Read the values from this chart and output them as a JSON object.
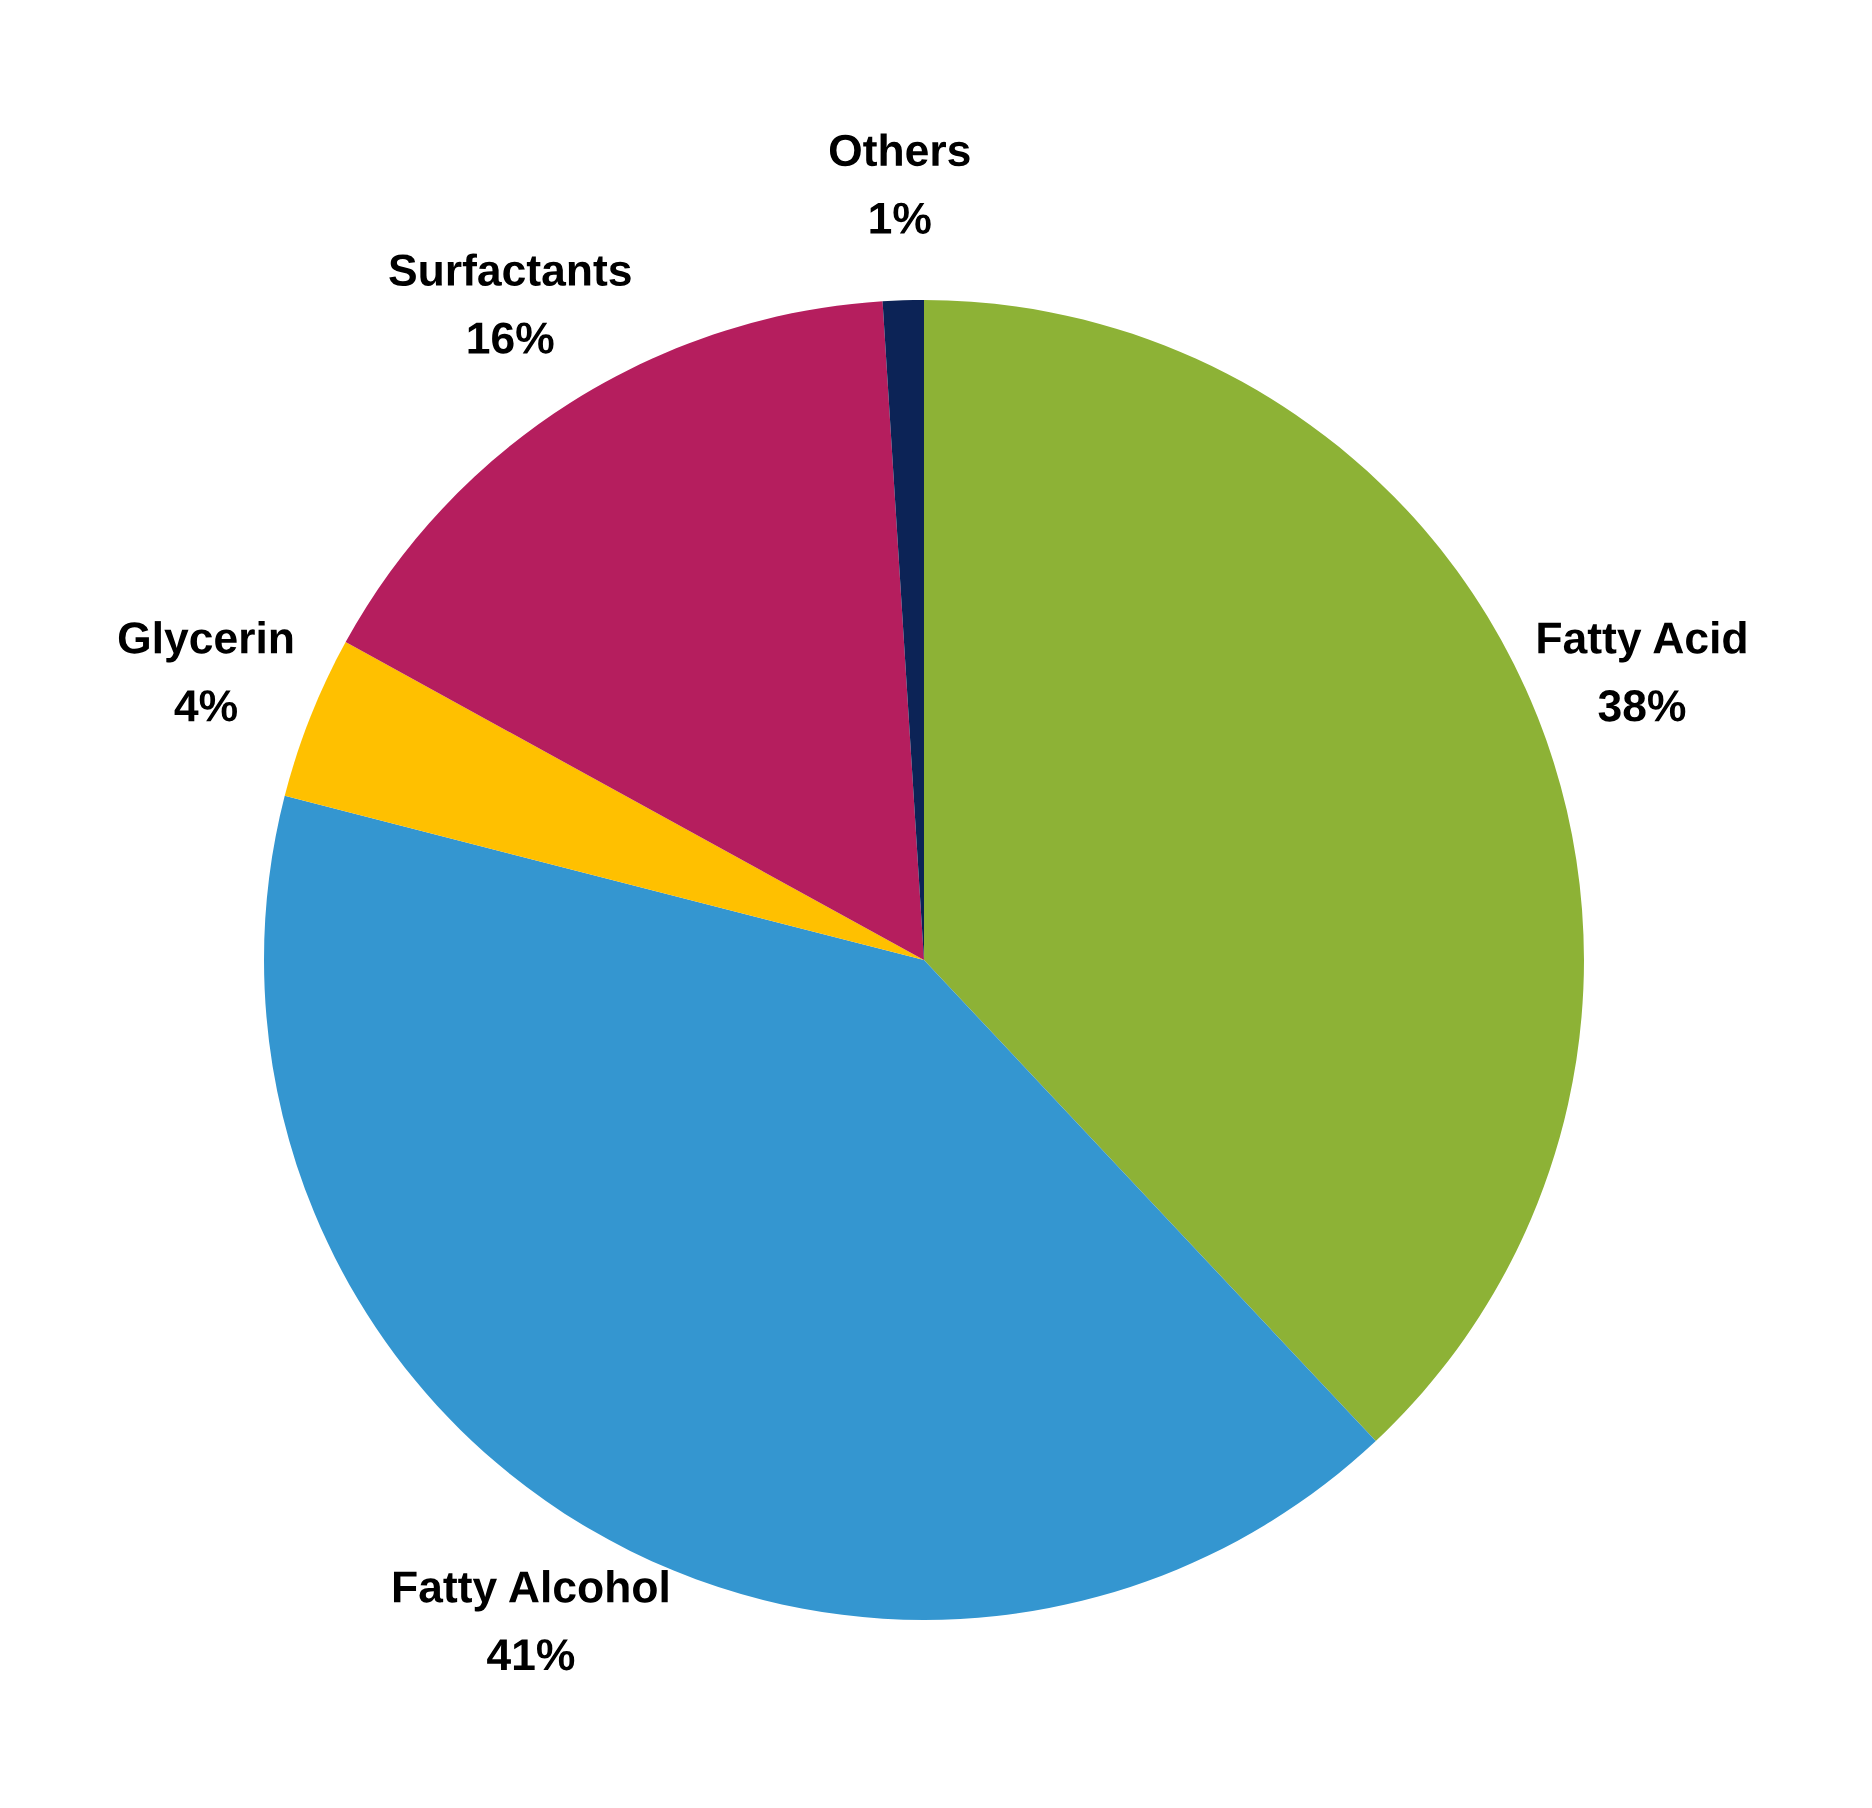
{
  "chart_data": {
    "type": "pie",
    "categories": [
      "Fatty Acid",
      "Fatty Alcohol",
      "Glycerin",
      "Surfactants",
      "Others"
    ],
    "values": [
      38,
      41,
      4,
      16,
      1
    ],
    "value_labels": [
      "38%",
      "41%",
      "4%",
      "16%",
      "1%"
    ],
    "colors": [
      "#8db236",
      "#3496d0",
      "#ffc000",
      "#b51e5e",
      "#0c2356"
    ],
    "legend": false
  }
}
